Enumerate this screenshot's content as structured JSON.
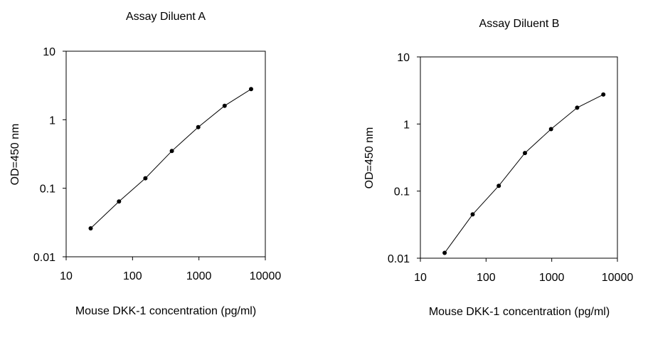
{
  "chart_data": [
    {
      "type": "scatter",
      "title": "Assay Diluent A",
      "xlabel": "Mouse DKK-1 concentration (pg/ml)",
      "ylabel": "OD=450 nm",
      "x_scale": "log",
      "y_scale": "log",
      "xlim": [
        10,
        10000
      ],
      "ylim": [
        0.01,
        10
      ],
      "x_ticks": [
        "10",
        "100",
        "1000",
        "10000"
      ],
      "y_ticks": [
        "0.01",
        "0.1",
        "1",
        "10"
      ],
      "grid": false,
      "series": [
        {
          "x": [
            23.4,
            62.5,
            156,
            391,
            977,
            2440,
            6100
          ],
          "y": [
            0.026,
            0.064,
            0.14,
            0.35,
            0.78,
            1.6,
            2.8
          ]
        }
      ]
    },
    {
      "type": "scatter",
      "title": "Assay Diluent B",
      "xlabel": "Mouse DKK-1 concentration (pg/ml)",
      "ylabel": "OD=450 nm",
      "x_scale": "log",
      "y_scale": "log",
      "xlim": [
        10,
        10000
      ],
      "ylim": [
        0.01,
        10
      ],
      "x_ticks": [
        "10",
        "100",
        "1000",
        "10000"
      ],
      "y_ticks": [
        "0.01",
        "0.1",
        "1",
        "10"
      ],
      "grid": false,
      "series": [
        {
          "x": [
            23.4,
            62.5,
            156,
            391,
            977,
            2440,
            6100
          ],
          "y": [
            0.012,
            0.045,
            0.12,
            0.37,
            0.84,
            1.75,
            2.75
          ]
        }
      ]
    }
  ]
}
